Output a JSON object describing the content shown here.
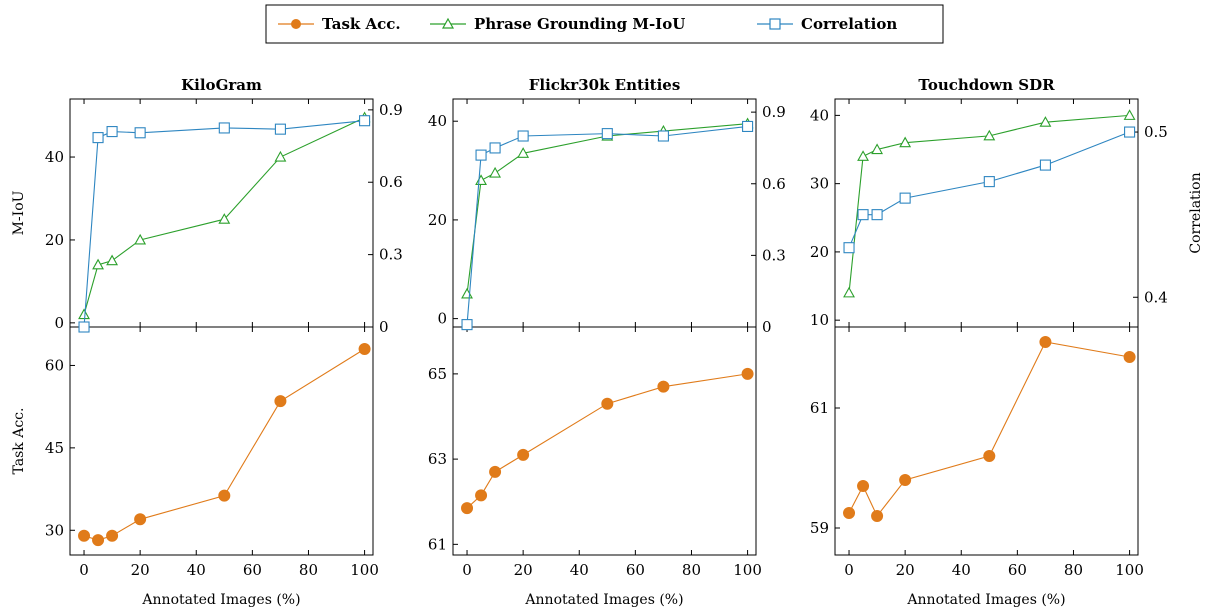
{
  "legend": {
    "items": [
      {
        "label": "Task Acc.",
        "color": "#E07B1A",
        "marker": "filled-circle"
      },
      {
        "label": "Phrase Grounding M-IoU",
        "color": "#2CA02C",
        "marker": "open-triangle"
      },
      {
        "label": "Correlation",
        "color": "#2E86C1",
        "marker": "open-square"
      }
    ]
  },
  "colors": {
    "task": "#E07B1A",
    "miou": "#2CA02C",
    "corr": "#2E86C1"
  },
  "chart_data": [
    {
      "type": "line",
      "title": "KiloGram",
      "xlabel": "Annotated Images (%)",
      "x": [
        0,
        5,
        10,
        20,
        50,
        70,
        100
      ],
      "xticks": [
        0,
        20,
        40,
        60,
        80,
        100
      ],
      "xlim": [
        -5,
        103
      ],
      "top": {
        "ylabel_left": "M-IoU",
        "ylabel_right": "",
        "ylim_left": [
          -1,
          54
        ],
        "yticks_left": [
          0,
          20,
          40
        ],
        "ylim_right": [
          0,
          0.945
        ],
        "yticks_right": [
          0,
          0.3,
          0.6,
          0.9
        ],
        "miou": [
          2,
          14,
          15,
          20,
          25,
          40,
          49.5
        ],
        "correlation": [
          0,
          0.785,
          0.81,
          0.805,
          0.825,
          0.82,
          0.855
        ]
      },
      "bottom": {
        "ylabel": "Task Acc.",
        "ylim": [
          25.5,
          67
        ],
        "yticks": [
          30,
          45,
          60
        ],
        "task_acc": [
          29,
          28.2,
          29,
          32,
          36.3,
          53.5,
          63
        ]
      }
    },
    {
      "type": "line",
      "title": "Flickr30k Entities",
      "xlabel": "Annotated Images (%)",
      "x": [
        0,
        5,
        10,
        20,
        50,
        70,
        100
      ],
      "xticks": [
        0,
        20,
        40,
        60,
        80,
        100
      ],
      "xlim": [
        -5,
        103
      ],
      "top": {
        "ylabel_left": "",
        "ylabel_right": "",
        "ylim_left": [
          -1.7,
          44.5
        ],
        "yticks_left": [
          0,
          20,
          40
        ],
        "ylim_right": [
          0,
          0.955
        ],
        "yticks_right": [
          0,
          0.3,
          0.6,
          0.9
        ],
        "miou": [
          5,
          28,
          29.5,
          33.5,
          37,
          38,
          39.5
        ],
        "correlation": [
          0.01,
          0.72,
          0.75,
          0.8,
          0.81,
          0.8,
          0.84
        ]
      },
      "bottom": {
        "ylabel": "",
        "ylim": [
          60.75,
          66.1
        ],
        "yticks": [
          61,
          63,
          65
        ],
        "task_acc": [
          61.85,
          62.15,
          62.7,
          63.1,
          64.3,
          64.7,
          65
        ]
      }
    },
    {
      "type": "line",
      "title": "Touchdown SDR",
      "xlabel": "Annotated Images (%)",
      "x": [
        0,
        5,
        10,
        20,
        50,
        70,
        100
      ],
      "xticks": [
        0,
        20,
        40,
        60,
        80,
        100
      ],
      "xlim": [
        -5,
        103
      ],
      "top": {
        "ylabel_left": "",
        "ylabel_right": "Correlation",
        "ylim_left": [
          9,
          42.4
        ],
        "yticks_left": [
          10,
          20,
          30,
          40
        ],
        "ylim_right": [
          0.382,
          0.52
        ],
        "yticks_right": [
          0.4,
          0.5
        ],
        "miou": [
          14,
          34,
          35,
          36,
          37,
          39,
          40
        ],
        "correlation": [
          0.43,
          0.45,
          0.45,
          0.46,
          0.47,
          0.48,
          0.5
        ]
      },
      "bottom": {
        "ylabel": "",
        "ylim": [
          58.55,
          62.35
        ],
        "yticks": [
          59,
          61
        ],
        "task_acc": [
          59.25,
          59.7,
          59.2,
          59.8,
          60.2,
          62.1,
          61.85
        ]
      }
    }
  ]
}
